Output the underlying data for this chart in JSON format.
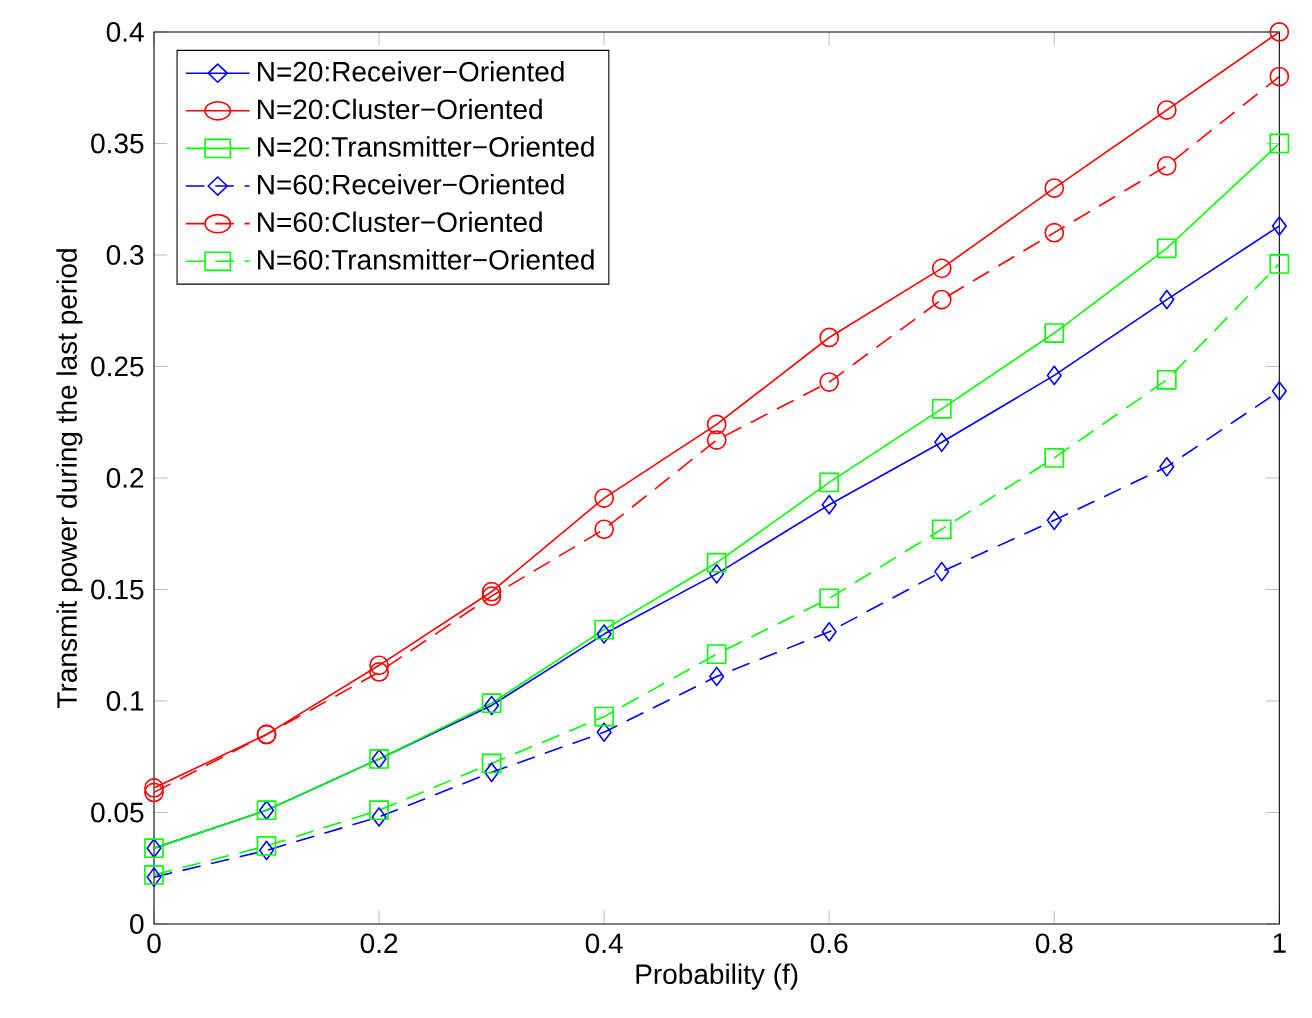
{
  "chart_data": {
    "type": "line",
    "xlabel": "Probability (f)",
    "ylabel": "Transmit power during the last period",
    "x": [
      0,
      0.1,
      0.2,
      0.3,
      0.4,
      0.5,
      0.6,
      0.7,
      0.8,
      0.9,
      1
    ],
    "series": [
      {
        "name": "N=20:Receiver−Oriented",
        "color": "#0000ff",
        "marker": "diamond",
        "line_style": "solid",
        "values": [
          0.034,
          0.051,
          0.074,
          0.098,
          0.13,
          0.157,
          0.188,
          0.216,
          0.246,
          0.28,
          0.313
        ]
      },
      {
        "name": "N=20:Cluster−Oriented",
        "color": "#ff0000",
        "marker": "circle",
        "line_style": "solid",
        "values": [
          0.061,
          0.085,
          0.116,
          0.149,
          0.191,
          0.224,
          0.263,
          0.294,
          0.33,
          0.365,
          0.4
        ]
      },
      {
        "name": "N=20:Transmitter−Oriented",
        "color": "#00ff00",
        "marker": "square",
        "line_style": "solid",
        "values": [
          0.034,
          0.051,
          0.074,
          0.099,
          0.132,
          0.162,
          0.198,
          0.231,
          0.265,
          0.303,
          0.35
        ]
      },
      {
        "name": "N=60:Receiver−Oriented",
        "color": "#0000ff",
        "marker": "diamond",
        "line_style": "dashed",
        "values": [
          0.021,
          0.033,
          0.048,
          0.068,
          0.086,
          0.111,
          0.131,
          0.158,
          0.181,
          0.205,
          0.239
        ]
      },
      {
        "name": "N=60:Cluster−Oriented",
        "color": "#ff0000",
        "marker": "circle",
        "line_style": "dashed",
        "values": [
          0.059,
          0.085,
          0.113,
          0.147,
          0.177,
          0.217,
          0.243,
          0.28,
          0.31,
          0.34,
          0.38
        ]
      },
      {
        "name": "N=60:Transmitter−Oriented",
        "color": "#00ff00",
        "marker": "square",
        "line_style": "dashed",
        "values": [
          0.022,
          0.035,
          0.051,
          0.072,
          0.093,
          0.121,
          0.146,
          0.177,
          0.209,
          0.244,
          0.296
        ]
      }
    ],
    "xlim": [
      0,
      1
    ],
    "ylim": [
      0,
      0.4
    ],
    "xticks": [
      0,
      0.2,
      0.4,
      0.6,
      0.8,
      1
    ],
    "yticks": [
      0,
      0.05,
      0.1,
      0.15,
      0.2,
      0.25,
      0.3,
      0.35,
      0.4
    ],
    "grid": false,
    "legend": "top left"
  }
}
